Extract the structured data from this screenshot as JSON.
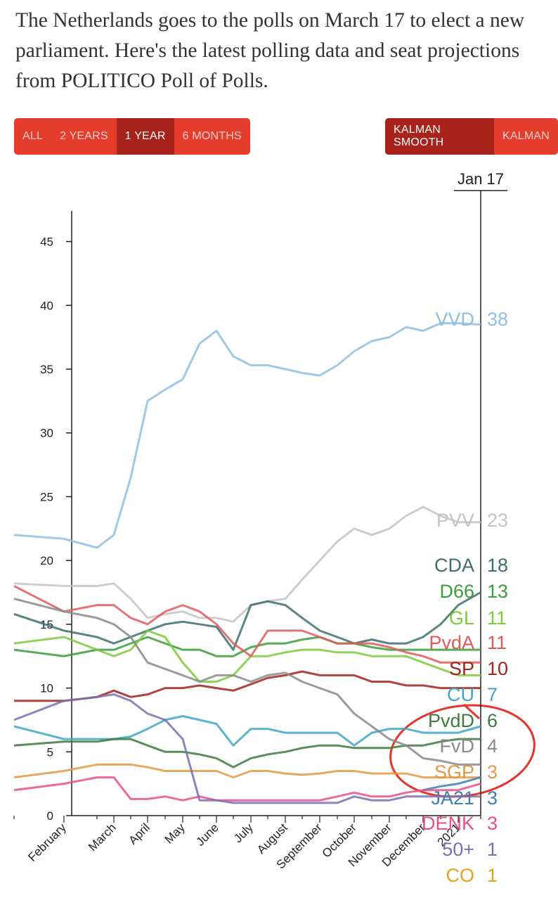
{
  "header": {
    "intro": "The Netherlands goes to the polls on March 17 to elect a new parliament. Here's the latest polling data and seat projections from POLITICO Poll of Polls."
  },
  "controls": {
    "range": [
      {
        "label": "ALL",
        "selected": false
      },
      {
        "label": "2 YEARS",
        "selected": false
      },
      {
        "label": "1 YEAR",
        "selected": true
      },
      {
        "label": "6 MONTHS",
        "selected": false
      }
    ],
    "smoothing": [
      {
        "label": "KALMAN SMOOTH",
        "selected": true
      },
      {
        "label": "KALMAN",
        "selected": false
      }
    ]
  },
  "chart_data": {
    "type": "line",
    "current_date": "Jan 17",
    "categories": [
      null,
      "February",
      null,
      "March",
      null,
      "April",
      null,
      "May",
      null,
      "June",
      null,
      "July",
      null,
      "August",
      null,
      "September",
      null,
      "October",
      null,
      "November",
      null,
      "December",
      null,
      "2021",
      null
    ],
    "ylim": [
      0,
      47.4
    ],
    "yticks": [
      0,
      5,
      10,
      15,
      20,
      25,
      30,
      35,
      40,
      45
    ],
    "series": [
      {
        "name": "VVD",
        "seats": 38,
        "color": "#8fbfe3",
        "values": [
          22,
          21.7,
          21,
          22,
          26.5,
          32.5,
          33.4,
          34.2,
          37,
          38,
          36,
          35.3,
          35.3,
          35,
          34.7,
          34.5,
          35.3,
          36.4,
          37.2,
          37.5,
          38.3,
          38,
          38.6,
          38.6,
          38.5
        ]
      },
      {
        "name": "PVV",
        "seats": 23,
        "color": "#c4c4c4",
        "values": [
          18.2,
          18,
          18,
          18.2,
          17,
          15.5,
          15.8,
          16,
          15.5,
          15.5,
          15.2,
          16.5,
          16.8,
          17,
          18.5,
          20,
          21.5,
          22.5,
          22,
          22.5,
          23.5,
          24.2,
          23.5,
          23,
          23
        ]
      },
      {
        "name": "CDA",
        "seats": 18,
        "color": "#3f6f6d",
        "values": [
          15.8,
          14.5,
          14,
          13.5,
          14,
          14.5,
          15,
          15.2,
          15,
          14.8,
          13,
          16.5,
          16.8,
          16.5,
          15.5,
          14.5,
          14,
          13.5,
          13.8,
          13.5,
          13.5,
          14,
          15,
          16.5,
          17.5
        ]
      },
      {
        "name": "D66",
        "seats": 13,
        "color": "#3a9e3a",
        "values": [
          13,
          12.5,
          13,
          13,
          13.5,
          14,
          13.5,
          13,
          13,
          12.5,
          12.5,
          13.2,
          13.5,
          13.5,
          13.8,
          14,
          13.5,
          13.5,
          13.2,
          13,
          13,
          13,
          13,
          13,
          13
        ]
      },
      {
        "name": "GL",
        "seats": 11,
        "color": "#7acc3c",
        "values": [
          13.5,
          14,
          13,
          12.5,
          13,
          14.5,
          14,
          12,
          10.5,
          10.5,
          11,
          12.5,
          12.5,
          12.8,
          13,
          13,
          12.8,
          12.8,
          12.5,
          12.5,
          12.5,
          12,
          11.5,
          11,
          11
        ]
      },
      {
        "name": "PvdA",
        "seats": 11,
        "color": "#e05a5a",
        "values": [
          18,
          16,
          16.5,
          16.5,
          15.5,
          15,
          16,
          16.5,
          16,
          15,
          13.5,
          12.5,
          14.5,
          14.5,
          14.5,
          14,
          13.5,
          13.5,
          13.5,
          13.2,
          12.8,
          12.5,
          12,
          12,
          12
        ]
      },
      {
        "name": "SP",
        "seats": 10,
        "color": "#a0251a",
        "values": [
          9,
          9,
          9.3,
          9.8,
          9.3,
          9.5,
          10,
          10,
          10.2,
          10,
          9.8,
          10.3,
          10.8,
          11,
          11.3,
          11,
          11,
          11,
          10.5,
          10.5,
          10.2,
          10.2,
          10,
          10,
          10
        ]
      },
      {
        "name": "CU",
        "seats": 7,
        "color": "#3fa6c8",
        "values": [
          7,
          6,
          6,
          6,
          6.2,
          6.8,
          7.5,
          7.8,
          7.5,
          7.2,
          5.5,
          6.8,
          6.8,
          6.5,
          6.5,
          6.5,
          6.5,
          5.5,
          6.5,
          6.8,
          6.8,
          6.5,
          6.5,
          6.5,
          7
        ]
      },
      {
        "name": "PvdD",
        "seats": 6,
        "color": "#3d7a3d",
        "values": [
          5.5,
          5.8,
          5.8,
          6,
          6,
          5.5,
          5,
          5,
          4.8,
          4.5,
          3.8,
          4.5,
          4.8,
          5,
          5.3,
          5.5,
          5.5,
          5.3,
          5.3,
          5.3,
          5.5,
          5.5,
          5.8,
          6,
          6
        ]
      },
      {
        "name": "FvD",
        "seats": 4,
        "color": "#8a8a8a",
        "values": [
          17,
          16,
          15.5,
          15,
          14,
          12,
          11.5,
          11,
          10.5,
          11,
          11,
          10.5,
          11,
          11.2,
          10.5,
          10,
          9.5,
          8,
          7,
          6,
          5.5,
          4.5,
          4.3,
          4,
          4
        ]
      },
      {
        "name": "SGP",
        "seats": 3,
        "color": "#e39a45",
        "values": [
          3,
          3.5,
          4,
          4,
          4,
          3.8,
          3.5,
          3.5,
          3.5,
          3.5,
          3,
          3.5,
          3.5,
          3.3,
          3.2,
          3.3,
          3.5,
          3.5,
          3.3,
          3.3,
          3.3,
          3,
          3,
          3,
          3
        ]
      },
      {
        "name": "JA21",
        "seats": 3,
        "color": "#3f7fb5",
        "values": [
          null,
          null,
          null,
          null,
          null,
          null,
          null,
          null,
          null,
          null,
          null,
          null,
          null,
          null,
          null,
          null,
          null,
          null,
          null,
          null,
          null,
          2,
          2.3,
          2.5,
          3
        ]
      },
      {
        "name": "DENK",
        "seats": 3,
        "color": "#e8508a",
        "values": [
          2,
          2.5,
          3,
          3,
          1.3,
          1.3,
          1.5,
          1.2,
          1.5,
          1.2,
          1.2,
          1.2,
          1.2,
          1.2,
          1.2,
          1.2,
          1.5,
          1.8,
          1.5,
          1.5,
          1.8,
          2,
          2,
          2,
          2.5
        ]
      },
      {
        "name": "50+",
        "seats": 1,
        "color": "#7a70b0",
        "values": [
          7.5,
          9,
          9.3,
          9.5,
          9,
          8,
          7.5,
          6,
          1.2,
          1.2,
          1,
          1,
          1,
          1,
          1,
          1,
          1,
          1.5,
          1.2,
          1.2,
          1.5,
          1.5,
          1.5,
          1.5,
          1.5
        ]
      },
      {
        "name": "CO",
        "seats": 1,
        "color": "#e8a020",
        "values": [
          null,
          null,
          null,
          null,
          null,
          null,
          null,
          null,
          null,
          null,
          null,
          null,
          null,
          null,
          null,
          null,
          null,
          null,
          null,
          null,
          null,
          null,
          null,
          null,
          null
        ]
      }
    ]
  }
}
